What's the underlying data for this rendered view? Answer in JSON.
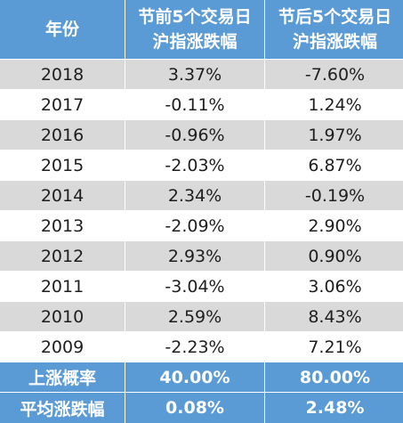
{
  "header": {
    "year": "年份",
    "pre_line1": "节前5个交易日",
    "pre_line2": "沪指涨跌幅",
    "post_line1": "节后5个交易日",
    "post_line2": "沪指涨跌幅"
  },
  "rows": [
    {
      "year": "2018",
      "pre": "3.37%",
      "post": "-7.60%"
    },
    {
      "year": "2017",
      "pre": "-0.11%",
      "post": "1.24%"
    },
    {
      "year": "2016",
      "pre": "-0.96%",
      "post": "1.97%"
    },
    {
      "year": "2015",
      "pre": "-2.03%",
      "post": "6.87%"
    },
    {
      "year": "2014",
      "pre": "2.34%",
      "post": "-0.19%"
    },
    {
      "year": "2013",
      "pre": "-2.09%",
      "post": "2.90%"
    },
    {
      "year": "2012",
      "pre": "2.93%",
      "post": "0.90%"
    },
    {
      "year": "2011",
      "pre": "-3.04%",
      "post": "3.06%"
    },
    {
      "year": "2010",
      "pre": "2.59%",
      "post": "8.43%"
    },
    {
      "year": "2009",
      "pre": "-2.23%",
      "post": "7.21%"
    }
  ],
  "footer": [
    {
      "label": "上涨概率",
      "pre": "40.00%",
      "post": "80.00%"
    },
    {
      "label": "平均涨跌幅",
      "pre": "0.08%",
      "post": "2.48%"
    }
  ],
  "colors": {
    "header_bg": "#5b9bd5",
    "stripe": "#d9d9d9",
    "white": "#ffffff"
  }
}
